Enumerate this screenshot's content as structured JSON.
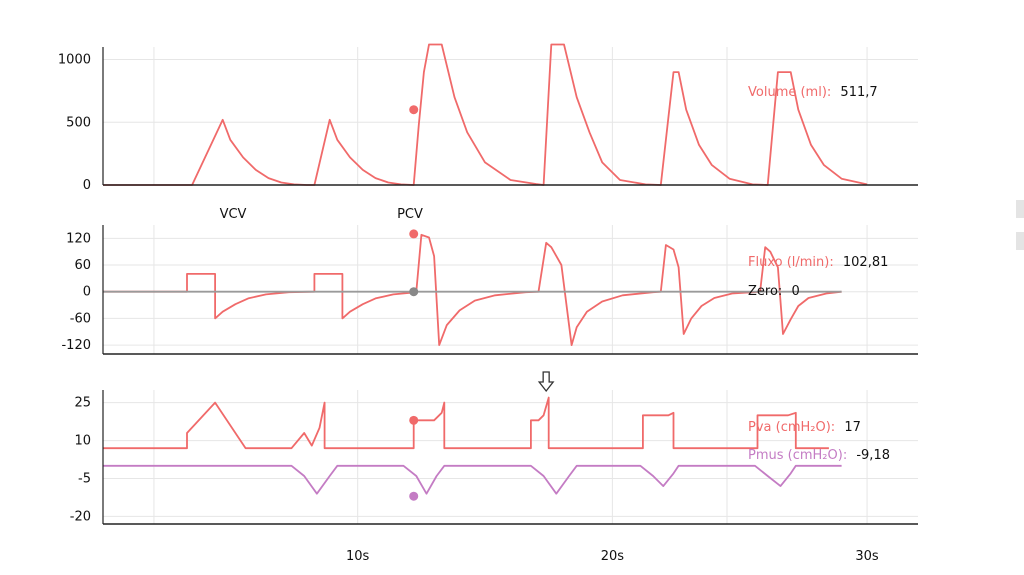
{
  "colors": {
    "volume": "#f06a6a",
    "flow": "#f06a6a",
    "pva": "#f06a6a",
    "pmus": "#c47cc4",
    "zero": "#9a9a9a",
    "grid": "#e6e6e6",
    "axis": "#222222",
    "label_text": "#111111"
  },
  "chart_data": [
    {
      "type": "line",
      "x_range": [
        0,
        32
      ],
      "ylim": [
        0,
        1100
      ],
      "yticks": [
        1000,
        500,
        0
      ],
      "grid": true,
      "annotations": [
        "VCV",
        "PCV"
      ],
      "readout": {
        "label": "Volume (ml):",
        "value": "511,7"
      },
      "marker": {
        "x": 12.2,
        "y": 600,
        "color": "#f06a6a"
      },
      "series": [
        {
          "color": "#f06a6a",
          "x": [
            0,
            3.5,
            4.7,
            5.0,
            5.5,
            6.0,
            6.5,
            7.0,
            7.5,
            8.0,
            8.3,
            8.9,
            9.2,
            9.7,
            10.2,
            10.7,
            11.2,
            11.7,
            12.2,
            12.4,
            12.6,
            12.8,
            13.3,
            13.8,
            14.3,
            15.0,
            16.0,
            17.0,
            17.3,
            17.6,
            18.1,
            18.6,
            19.1,
            19.6,
            20.3,
            21.3,
            21.9,
            22.4,
            22.6,
            22.9,
            23.4,
            23.9,
            24.6,
            25.5,
            26.1,
            26.5,
            27.0,
            27.3,
            27.8,
            28.3,
            29.0,
            30.0
          ],
          "y": [
            0,
            0,
            520,
            360,
            220,
            120,
            55,
            20,
            5,
            0,
            0,
            520,
            360,
            220,
            120,
            55,
            20,
            5,
            0,
            480,
            900,
            1120,
            1120,
            700,
            420,
            180,
            40,
            8,
            0,
            1120,
            1120,
            700,
            420,
            180,
            40,
            5,
            0,
            900,
            900,
            600,
            320,
            160,
            50,
            5,
            0,
            900,
            900,
            600,
            320,
            160,
            50,
            5
          ]
        }
      ]
    },
    {
      "type": "line",
      "x_range": [
        0,
        32
      ],
      "ylim": [
        -140,
        150
      ],
      "yticks": [
        120,
        60,
        0,
        -60,
        -120
      ],
      "grid": true,
      "readout": {
        "label": "Fluxo (l/min):",
        "value": "102,81",
        "zero_label": "Zero:",
        "zero_value": "0"
      },
      "markers": [
        {
          "x": 12.2,
          "y": 130,
          "color": "#f06a6a"
        },
        {
          "x": 12.2,
          "y": 0,
          "color": "#888888"
        }
      ],
      "series": [
        {
          "color": "#f06a6a",
          "x": [
            0,
            1.3,
            1.3,
            3.3,
            3.3,
            4.4,
            4.4,
            4.7,
            5.2,
            5.7,
            6.4,
            7.3,
            8.3,
            8.3,
            9.4,
            9.4,
            9.7,
            10.2,
            10.7,
            11.4,
            12.3,
            12.3,
            12.5,
            12.8,
            13.0,
            13.2,
            13.5,
            14.0,
            14.6,
            15.4,
            16.6,
            17.1,
            17.4,
            17.6,
            18.0,
            18.4,
            18.6,
            19.0,
            19.6,
            20.4,
            21.6,
            21.9,
            22.1,
            22.4,
            22.6,
            22.8,
            23.1,
            23.5,
            24.0,
            24.7,
            25.8,
            26.0,
            26.2,
            26.5,
            26.7,
            27.0,
            27.3,
            27.7,
            28.4,
            29.0
          ],
          "y": [
            0,
            0,
            0,
            0,
            40,
            40,
            -60,
            -45,
            -28,
            -15,
            -6,
            -1,
            0,
            40,
            40,
            -60,
            -45,
            -28,
            -15,
            -6,
            -1,
            0,
            128,
            122,
            80,
            -120,
            -75,
            -42,
            -20,
            -8,
            -1,
            0,
            110,
            100,
            60,
            -120,
            -80,
            -45,
            -22,
            -8,
            -1,
            0,
            105,
            95,
            55,
            -95,
            -60,
            -32,
            -14,
            -4,
            0,
            100,
            90,
            55,
            -95,
            -62,
            -32,
            -14,
            -4,
            0
          ]
        },
        {
          "color": "#9a9a9a",
          "x": [
            0,
            29
          ],
          "y": [
            0,
            0
          ]
        }
      ]
    },
    {
      "type": "line",
      "x_range": [
        0,
        32
      ],
      "ylim": [
        -23,
        30
      ],
      "yticks": [
        25,
        10,
        -5,
        -20
      ],
      "grid": true,
      "arrow_x": 17.4,
      "readout": [
        {
          "label": "Pva (cmH₂O):",
          "value": "17"
        },
        {
          "label": "Pmus (cmH₂O):",
          "value": "-9,18"
        }
      ],
      "markers": [
        {
          "x": 12.2,
          "y": 18,
          "color": "#f06a6a"
        },
        {
          "x": 12.2,
          "y": -12,
          "color": "#c47cc4"
        }
      ],
      "series": [
        {
          "color": "#f06a6a",
          "x": [
            0,
            1.3,
            1.3,
            3.3,
            3.3,
            4.4,
            4.4,
            5.6,
            5.6,
            7.4,
            7.4,
            7.9,
            8.2,
            8.5,
            8.7,
            8.7,
            9.5,
            9.5,
            12.2,
            12.2,
            13.0,
            13.3,
            13.4,
            13.4,
            14.5,
            14.5,
            16.8,
            16.8,
            17.1,
            17.3,
            17.5,
            17.5,
            18.6,
            18.6,
            21.2,
            21.2,
            22.2,
            22.4,
            22.4,
            23.6,
            23.6,
            25.7,
            25.7,
            26.9,
            27.2,
            27.2,
            28.5
          ],
          "y": [
            7,
            7,
            7,
            7,
            13,
            25,
            25,
            7,
            7,
            7,
            7,
            13,
            8,
            15,
            25,
            7,
            7,
            7,
            7,
            18,
            18,
            21,
            25,
            7,
            7,
            7,
            7,
            18,
            18,
            20,
            27,
            7,
            7,
            7,
            7,
            20,
            20,
            21,
            7,
            7,
            7,
            7,
            20,
            20,
            21,
            7,
            7
          ]
        },
        {
          "color": "#c47cc4",
          "x": [
            0,
            7.4,
            7.9,
            8.4,
            8.9,
            9.2,
            9.5,
            11.8,
            12.3,
            12.7,
            13.1,
            13.4,
            16.8,
            17.3,
            17.8,
            18.3,
            18.6,
            21.1,
            21.6,
            22.0,
            22.4,
            22.6,
            25.6,
            26.1,
            26.6,
            27.0,
            27.2,
            29.0
          ],
          "y": [
            0,
            0,
            -4,
            -11,
            -4,
            0,
            0,
            0,
            -4,
            -11,
            -4,
            0,
            0,
            -4,
            -11,
            -4,
            0,
            0,
            -4,
            -8,
            -3,
            0,
            0,
            -4,
            -8,
            -3,
            0,
            0
          ]
        }
      ]
    }
  ],
  "x_axis": {
    "tick_values": [
      10,
      20,
      30
    ],
    "tick_labels": [
      "10s",
      "20s",
      "30s"
    ]
  }
}
